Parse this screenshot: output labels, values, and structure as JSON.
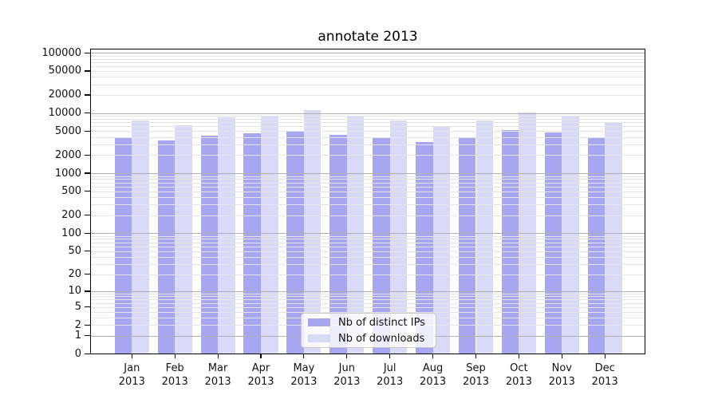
{
  "chart_data": {
    "type": "bar",
    "title": "annotate 2013",
    "categories": [
      "Jan 2013",
      "Feb 2013",
      "Mar 2013",
      "Apr 2013",
      "May 2013",
      "Jun 2013",
      "Jul 2013",
      "Aug 2013",
      "Sep 2013",
      "Oct 2013",
      "Nov 2013",
      "Dec 2013"
    ],
    "series": [
      {
        "name": "Nb of distinct IPs",
        "color": "#a6a6f1",
        "values": [
          3850,
          3460,
          4190,
          4590,
          4990,
          4320,
          3980,
          3310,
          3860,
          5140,
          4730,
          3980
        ]
      },
      {
        "name": "Nb of downloads",
        "color": "#d9d9f8",
        "values": [
          7480,
          6280,
          8630,
          8890,
          11220,
          8710,
          7550,
          6040,
          7550,
          10350,
          8970,
          7090
        ]
      }
    ],
    "yscale": "log10(1+v)",
    "ylim": [
      0,
      117000
    ],
    "yticks": [
      0,
      1,
      2,
      5,
      10,
      20,
      50,
      100,
      200,
      500,
      1000,
      2000,
      5000,
      10000,
      20000,
      50000,
      100000
    ],
    "ytick_labels": [
      "0",
      "1",
      "2",
      "5",
      "10",
      "20",
      "50",
      "100",
      "200",
      "500",
      "1000",
      "2000",
      "5000",
      "10000",
      "20000",
      "50000",
      "100000"
    ],
    "grid": true,
    "legend_position": "lower center"
  },
  "x_axis": {
    "months": [
      "Jan",
      "Feb",
      "Mar",
      "Apr",
      "May",
      "Jun",
      "Jul",
      "Aug",
      "Sep",
      "Oct",
      "Nov",
      "Dec"
    ],
    "year": "2013"
  },
  "colors": {
    "bar_ips": "#a6a6f1",
    "bar_downloads": "#d9d9f8",
    "grid_major": "#b0b0b0",
    "grid_minor": "#e4e4e4",
    "spine": "#000000"
  }
}
